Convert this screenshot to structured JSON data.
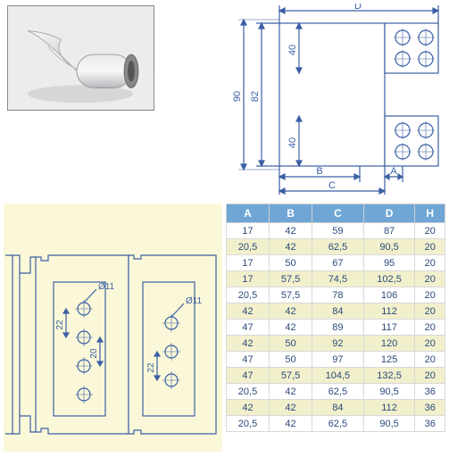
{
  "diagram_top": {
    "overall_height": "90",
    "inner_height": "82",
    "leaf_height": "40",
    "labels": [
      "A",
      "B",
      "C",
      "D"
    ]
  },
  "diagram_bottom": {
    "hole_dia": "Ø11",
    "pitch_v": "22",
    "pitch_mid": "20"
  },
  "table": {
    "columns": [
      "A",
      "B",
      "C",
      "D",
      "H"
    ],
    "rows": [
      [
        "17",
        "42",
        "59",
        "87",
        "20"
      ],
      [
        "20,5",
        "42",
        "62,5",
        "90,5",
        "20"
      ],
      [
        "17",
        "50",
        "67",
        "95",
        "20"
      ],
      [
        "17",
        "57,5",
        "74,5",
        "102,5",
        "20"
      ],
      [
        "20,5",
        "57,5",
        "78",
        "106",
        "20"
      ],
      [
        "42",
        "42",
        "84",
        "112",
        "20"
      ],
      [
        "47",
        "42",
        "89",
        "117",
        "20"
      ],
      [
        "42",
        "50",
        "92",
        "120",
        "20"
      ],
      [
        "47",
        "50",
        "97",
        "125",
        "20"
      ],
      [
        "47",
        "57,5",
        "104,5",
        "132,5",
        "20"
      ],
      [
        "20,5",
        "42",
        "62,5",
        "90,5",
        "36"
      ],
      [
        "42",
        "42",
        "84",
        "112",
        "36"
      ],
      [
        "20,5",
        "42",
        "62,5",
        "90,5",
        "36"
      ]
    ]
  },
  "styles": {
    "header_bg": "#6fa6d6",
    "header_fg": "#ffffff",
    "row_odd_bg": "#ffffff",
    "row_even_bg": "#f2f0cc",
    "cell_fg": "#2a4a7a",
    "drawing_stroke": "#3b5fa4",
    "dim_stroke": "#3b5fa4",
    "panel_bg": "#faf8d8"
  }
}
